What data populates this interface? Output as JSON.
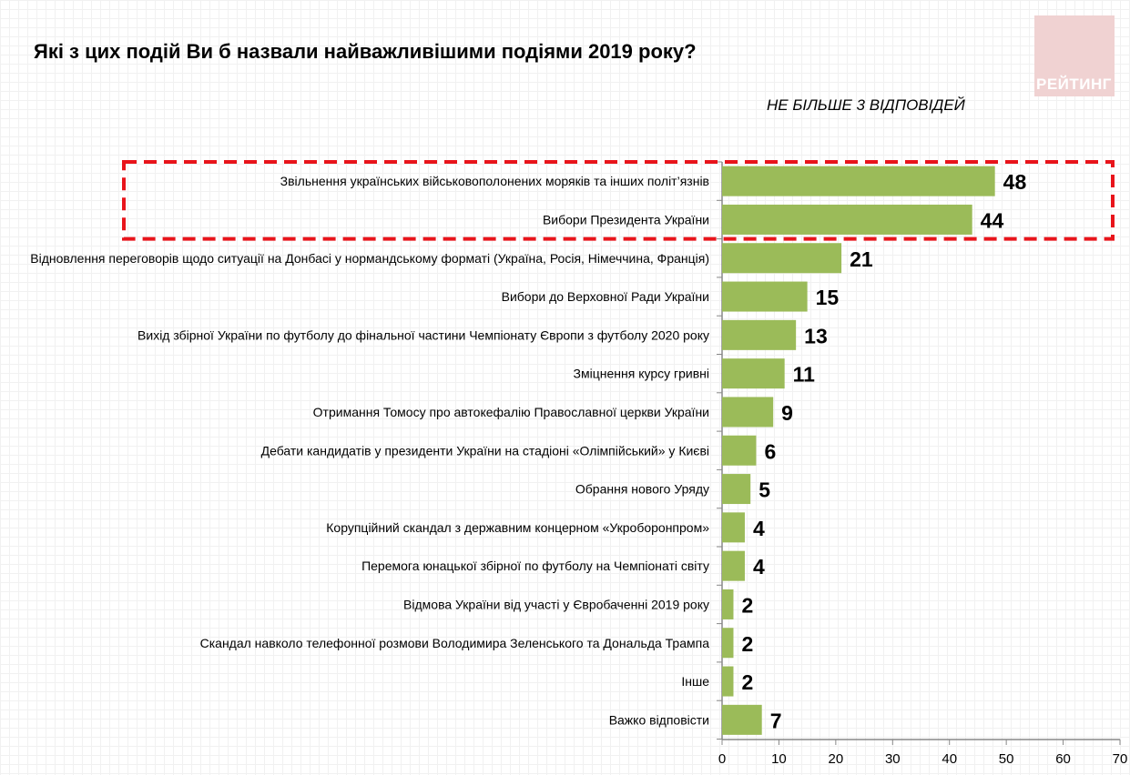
{
  "chart_data": {
    "type": "bar",
    "orientation": "horizontal",
    "title": "Які з цих подій Ви б назвали найважливішими подіями 2019 року?",
    "subtitle": "НЕ БІЛЬШЕ 3 ВІДПОВІДЕЙ",
    "logo": "РЕЙТИНГ",
    "categories": [
      "Звільнення українських військовополонених моряків та інших політ’язнів",
      "Вибори Президента України",
      "Відновлення переговорів щодо ситуації на Донбасі у нормандському форматі (Україна, Росія, Німеччина, Франція)",
      "Вибори до Верховної Ради України",
      "Вихід збірної України по футболу до фінальної частини Чемпіонату Європи з футболу 2020 року",
      "Зміцнення курсу гривні",
      "Отримання Томосу про автокефалію Православної церкви України",
      "Дебати кандидатів у президенти України на стадіоні «Олімпійський» у Києві",
      "Обрання нового Уряду",
      "Корупційний скандал з державним концерном «Укроборонпром»",
      "Перемога юнацької збірної по футболу на Чемпіонаті світу",
      "Відмова України від участі у Євробаченні 2019 року",
      "Скандал навколо телефонної розмови Володимира Зеленського та Дональда Трампа",
      "Інше",
      "Важко відповісти"
    ],
    "values": [
      48,
      44,
      21,
      15,
      13,
      11,
      9,
      6,
      5,
      4,
      4,
      2,
      2,
      2,
      7
    ],
    "xlim": [
      0,
      70
    ],
    "xticks": [
      "0",
      "10",
      "20",
      "30",
      "40",
      "50",
      "60",
      "70"
    ],
    "bar_color": "#9bbb59",
    "highlight_color": "#e8141b",
    "highlighted_categories": [
      0,
      1
    ],
    "grid": false
  }
}
